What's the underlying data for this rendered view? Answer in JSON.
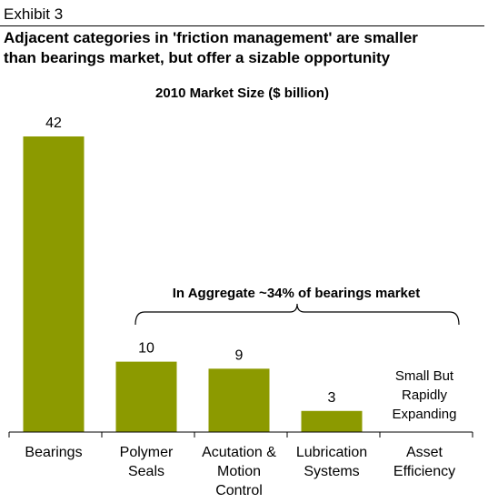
{
  "exhibit": "Exhibit 3",
  "title_lines": [
    "Adjacent categories in 'friction management' are smaller",
    "than bearings market, but offer a sizable opportunity"
  ],
  "chart_data": {
    "type": "bar",
    "title": "2010 Market Size ($ billion)",
    "categories": [
      [
        "Bearings"
      ],
      [
        "Polymer",
        "Seals"
      ],
      [
        "Acutation &",
        "Motion",
        "Control"
      ],
      [
        "Lubrication",
        "Systems"
      ],
      [
        "Asset",
        "Efficiency"
      ]
    ],
    "values": [
      42,
      10,
      9,
      3,
      null
    ],
    "data_labels": [
      "42",
      "10",
      "9",
      "3",
      ""
    ],
    "bar_color": "#8c9a00",
    "ylim": [
      0,
      42
    ],
    "annotations": {
      "bracket_label": "In Aggregate ~34% of bearings market",
      "asset_note": [
        "Small But",
        "Rapidly",
        "Expanding"
      ]
    }
  }
}
